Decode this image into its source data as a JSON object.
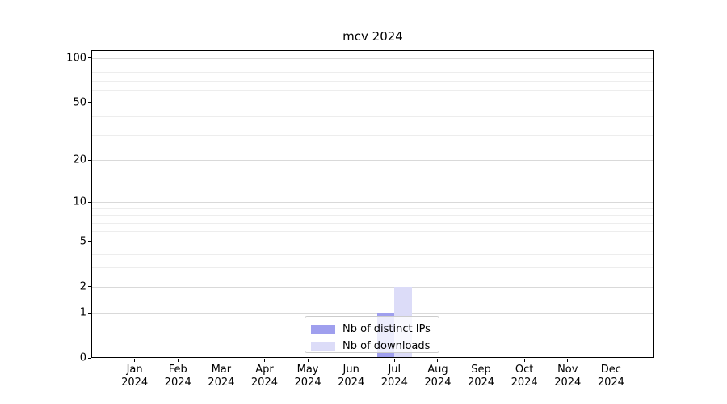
{
  "chart_data": {
    "type": "bar",
    "title": "mcv 2024",
    "categories": [
      "Jan",
      "Feb",
      "Mar",
      "Apr",
      "May",
      "Jun",
      "Jul",
      "Aug",
      "Sep",
      "Oct",
      "Nov",
      "Dec"
    ],
    "year_label": "2024",
    "series": [
      {
        "name": "Nb of distinct IPs",
        "color": "#9f9fee",
        "values": [
          0,
          0,
          0,
          0,
          0,
          0,
          1,
          0,
          0,
          0,
          0,
          0
        ]
      },
      {
        "name": "Nb of downloads",
        "color": "#dcdcf8",
        "values": [
          0,
          0,
          0,
          0,
          0,
          0,
          2,
          0,
          0,
          0,
          0,
          0
        ]
      }
    ],
    "y_scale": "log1p",
    "y_major_ticks": [
      0,
      1,
      2,
      5,
      10,
      20,
      50,
      100
    ],
    "y_minor_gridlines": [
      3,
      4,
      6,
      7,
      8,
      9,
      30,
      40,
      60,
      70,
      80,
      90
    ],
    "ylim": [
      0,
      113
    ],
    "grid": true,
    "legend_position": "bottom-center"
  },
  "colors": {
    "major_grid": "#d9d9d9",
    "minor_grid": "#ededed",
    "spine": "#000000",
    "legend_border": "#cccccc",
    "background": "#ffffff"
  }
}
